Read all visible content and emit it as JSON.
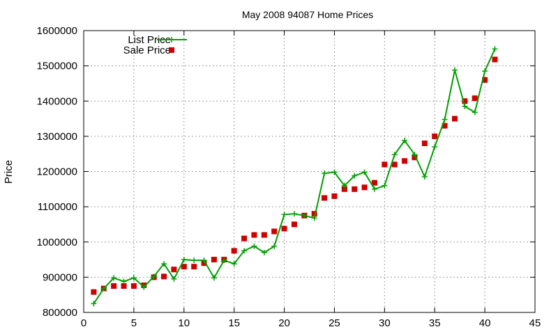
{
  "chart_data": {
    "type": "line",
    "title": "May 2008 94087 Home Prices",
    "xlabel": "",
    "ylabel": "Price",
    "xlim": [
      0,
      45
    ],
    "ylim": [
      800000,
      1600000
    ],
    "xticks": [
      0,
      5,
      10,
      15,
      20,
      25,
      30,
      35,
      40,
      45
    ],
    "yticks": [
      800000,
      900000,
      1000000,
      1100000,
      1200000,
      1300000,
      1400000,
      1500000,
      1600000
    ],
    "grid": true,
    "legend_position": "top-left",
    "series": [
      {
        "name": "List Price",
        "style": "line+cross",
        "color": "#00a000",
        "x": [
          1,
          2,
          3,
          4,
          5,
          6,
          7,
          8,
          9,
          10,
          11,
          12,
          13,
          14,
          15,
          16,
          17,
          18,
          19,
          20,
          21,
          22,
          23,
          24,
          25,
          26,
          27,
          28,
          29,
          30,
          31,
          32,
          33,
          34,
          35,
          36,
          37,
          38,
          39,
          40,
          41
        ],
        "y": [
          825000,
          868000,
          898000,
          888000,
          898000,
          872000,
          902000,
          938000,
          895000,
          950000,
          948000,
          948000,
          898000,
          948000,
          938000,
          975000,
          988000,
          970000,
          988000,
          1078000,
          1080000,
          1075000,
          1068000,
          1195000,
          1198000,
          1160000,
          1188000,
          1198000,
          1150000,
          1160000,
          1248000,
          1288000,
          1248000,
          1185000,
          1270000,
          1348000,
          1488000,
          1385000,
          1368000,
          1485000,
          1548000
        ]
      },
      {
        "name": "Sale Price",
        "style": "square",
        "color": "#cc0000",
        "x": [
          1,
          2,
          3,
          4,
          5,
          6,
          7,
          8,
          9,
          10,
          11,
          12,
          13,
          14,
          15,
          16,
          17,
          18,
          19,
          20,
          21,
          22,
          23,
          24,
          25,
          26,
          27,
          28,
          29,
          30,
          31,
          32,
          33,
          34,
          35,
          36,
          37,
          38,
          39,
          40,
          41
        ],
        "y": [
          858000,
          868000,
          875000,
          875000,
          875000,
          877000,
          900000,
          902000,
          922000,
          930000,
          930000,
          940000,
          950000,
          950000,
          975000,
          1010000,
          1020000,
          1020000,
          1030000,
          1038000,
          1050000,
          1075000,
          1080000,
          1125000,
          1130000,
          1150000,
          1150000,
          1155000,
          1168000,
          1220000,
          1220000,
          1230000,
          1240000,
          1280000,
          1300000,
          1330000,
          1350000,
          1400000,
          1408000,
          1460000,
          1518000
        ]
      }
    ]
  }
}
